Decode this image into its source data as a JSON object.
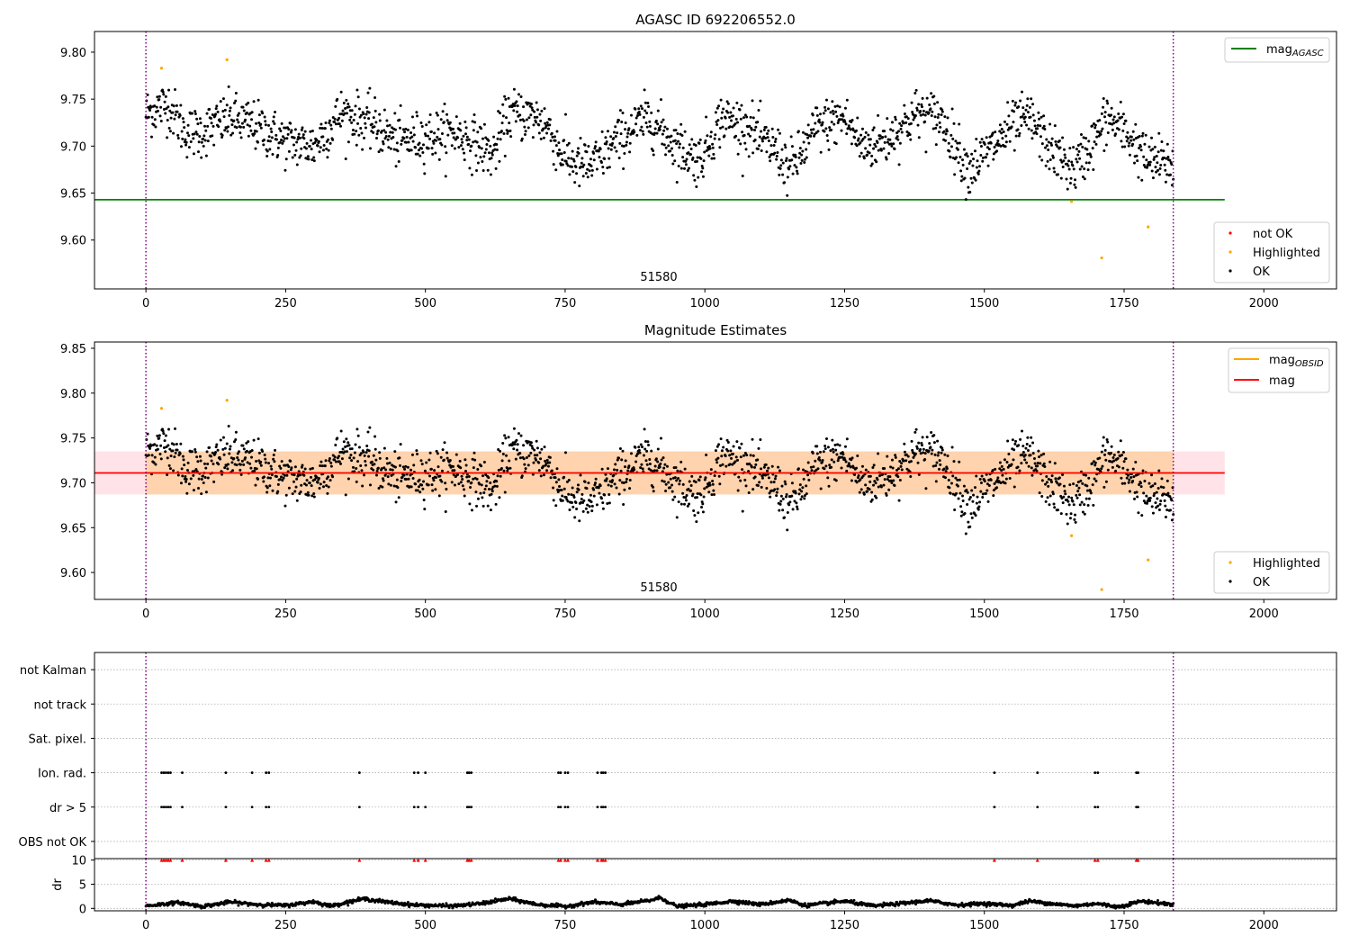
{
  "chart_data": [
    {
      "type": "scatter",
      "title": "AGASC ID 692206552.0",
      "xlabel": "",
      "ylabel": "",
      "xlim": [
        -92,
        2130
      ],
      "ylim": [
        9.548,
        9.822
      ],
      "xticks": [
        0,
        250,
        500,
        750,
        1000,
        1250,
        1500,
        1750,
        2000
      ],
      "yticks": [
        9.6,
        9.65,
        9.7,
        9.75,
        9.8
      ],
      "ytick_labels": [
        "9.60",
        "9.65",
        "9.70",
        "9.75",
        "9.80"
      ],
      "grid": false,
      "observation_boundaries": [
        0,
        1838
      ],
      "observation_labels": [
        {
          "x": 919,
          "text": "51580"
        }
      ],
      "hlines": [
        {
          "name": "mag_AGASC",
          "value": 9.643,
          "xmin": -92,
          "xmax": 1930,
          "color": "#008000"
        }
      ],
      "series": [
        {
          "name": "not OK",
          "color": "#ff0000",
          "x": [],
          "y": []
        },
        {
          "name": "Highlighted",
          "color": "#ffa500",
          "x": [
            28,
            145,
            1656,
            1710,
            1793
          ],
          "y": [
            9.783,
            9.792,
            9.641,
            9.581,
            9.614
          ]
        },
        {
          "name": "OK",
          "color": "#000000",
          "x": [
            0,
            1838
          ],
          "y": [
            9.72,
            9.68
          ],
          "n_points": 1800,
          "profile": [
            [
              0,
              9.735
            ],
            [
              40,
              9.745
            ],
            [
              70,
              9.715
            ],
            [
              100,
              9.715
            ],
            [
              150,
              9.73
            ],
            [
              200,
              9.72
            ],
            [
              250,
              9.705
            ],
            [
              300,
              9.7
            ],
            [
              350,
              9.735
            ],
            [
              400,
              9.725
            ],
            [
              450,
              9.705
            ],
            [
              500,
              9.71
            ],
            [
              550,
              9.715
            ],
            [
              600,
              9.7
            ],
            [
              620,
              9.69
            ],
            [
              650,
              9.735
            ],
            [
              700,
              9.73
            ],
            [
              720,
              9.72
            ],
            [
              740,
              9.695
            ],
            [
              770,
              9.68
            ],
            [
              800,
              9.68
            ],
            [
              850,
              9.71
            ],
            [
              900,
              9.73
            ],
            [
              950,
              9.7
            ],
            [
              990,
              9.685
            ],
            [
              1030,
              9.73
            ],
            [
              1080,
              9.72
            ],
            [
              1100,
              9.705
            ],
            [
              1130,
              9.695
            ],
            [
              1150,
              9.675
            ],
            [
              1170,
              9.69
            ],
            [
              1200,
              9.72
            ],
            [
              1250,
              9.73
            ],
            [
              1280,
              9.7
            ],
            [
              1320,
              9.705
            ],
            [
              1380,
              9.735
            ],
            [
              1420,
              9.73
            ],
            [
              1450,
              9.7
            ],
            [
              1470,
              9.675
            ],
            [
              1500,
              9.69
            ],
            [
              1550,
              9.72
            ],
            [
              1580,
              9.73
            ],
            [
              1620,
              9.695
            ],
            [
              1660,
              9.675
            ],
            [
              1690,
              9.7
            ],
            [
              1720,
              9.73
            ],
            [
              1760,
              9.71
            ],
            [
              1790,
              9.685
            ],
            [
              1838,
              9.68
            ]
          ]
        }
      ],
      "legends": {
        "top-right": [
          "mag_AGASC"
        ],
        "bottom-right": [
          "not OK",
          "Highlighted",
          "OK"
        ]
      }
    },
    {
      "type": "scatter",
      "title": "Magnitude Estimates",
      "xlabel": "",
      "ylabel": "",
      "xlim": [
        -92,
        2130
      ],
      "ylim": [
        9.57,
        9.857
      ],
      "xticks": [
        0,
        250,
        500,
        750,
        1000,
        1250,
        1500,
        1750,
        2000
      ],
      "yticks": [
        9.6,
        9.65,
        9.7,
        9.75,
        9.8,
        9.85
      ],
      "ytick_labels": [
        "9.60",
        "9.65",
        "9.70",
        "9.75",
        "9.80",
        "9.85"
      ],
      "grid": false,
      "observation_boundaries": [
        0,
        1838
      ],
      "observation_labels": [
        {
          "x": 919,
          "text": "51580"
        }
      ],
      "hlines": [
        {
          "name": "mag_OBSID",
          "value": 9.711,
          "xmin": 0,
          "xmax": 1838,
          "color": "#ffa500"
        },
        {
          "name": "mag",
          "value": 9.711,
          "xmin": -92,
          "xmax": 1930,
          "color": "#ff0000"
        }
      ],
      "bands": [
        {
          "name": "mag range",
          "ymin": 9.687,
          "ymax": 9.735,
          "xmin": -92,
          "xmax": 1930,
          "color": "#ffc0cb"
        },
        {
          "name": "mag_OBSID range",
          "ymin": 9.687,
          "ymax": 9.735,
          "xmin": 0,
          "xmax": 1838,
          "color": "#ffa500"
        }
      ],
      "series": [
        {
          "name": "Highlighted",
          "color": "#ffa500",
          "x": [
            28,
            145,
            1656,
            1710,
            1793
          ],
          "y": [
            9.783,
            9.792,
            9.641,
            9.581,
            9.614
          ]
        },
        {
          "name": "OK",
          "color": "#000000",
          "x": [
            0,
            1838
          ],
          "y": [
            9.72,
            9.68
          ],
          "n_points": 1800,
          "same_as": "panel 1 OK"
        }
      ],
      "legends": {
        "top-right": [
          "mag_OBSID",
          "mag"
        ],
        "bottom-right": [
          "Highlighted",
          "OK"
        ]
      }
    },
    {
      "type": "scatter",
      "title": "",
      "xlabel": "",
      "ylabel": "",
      "xlim": [
        -92,
        2130
      ],
      "ylim": [
        -0.5,
        5.5
      ],
      "categories": [
        "OBS not OK",
        "dr > 5",
        "Ion. rad.",
        "Sat. pixel.",
        "not track",
        "not Kalman"
      ],
      "grid": "horizontal dotted",
      "observation_boundaries": [
        0,
        1838
      ],
      "series": [
        {
          "name": "dr > 5",
          "color": "#000000",
          "x": [
            28,
            32,
            36,
            40,
            44,
            65,
            143,
            190,
            215,
            220,
            382,
            480,
            487,
            500,
            575,
            578,
            582,
            738,
            742,
            750,
            755,
            808,
            815,
            818,
            822,
            1518,
            1595,
            1698,
            1703,
            1772,
            1775
          ],
          "y": 1
        },
        {
          "name": "Ion. rad.",
          "color": "#000000",
          "x": [
            28,
            32,
            36,
            40,
            44,
            65,
            143,
            190,
            215,
            220,
            382,
            480,
            487,
            500,
            575,
            578,
            582,
            738,
            742,
            750,
            755,
            808,
            815,
            818,
            822,
            1518,
            1595,
            1698,
            1703,
            1772,
            1775
          ],
          "y": 2
        }
      ]
    },
    {
      "type": "scatter",
      "title": "",
      "xlabel": "",
      "ylabel": "dr",
      "xlim": [
        -92,
        2130
      ],
      "ylim": [
        -0.5,
        10.3
      ],
      "yticks": [
        0,
        5,
        10
      ],
      "ytick_labels": [
        "0",
        "5",
        "10"
      ],
      "xticks": [
        0,
        250,
        500,
        750,
        1000,
        1250,
        1500,
        1750,
        2000
      ],
      "grid": "horizontal dotted",
      "observation_boundaries": [
        0,
        1838
      ],
      "series": [
        {
          "name": "dr",
          "color": "#000000",
          "x": [
            0,
            1838
          ],
          "y": [
            0.5,
            1.0
          ],
          "n_points": 1800,
          "profile": [
            [
              0,
              0.5
            ],
            [
              40,
              1
            ],
            [
              60,
              1.2
            ],
            [
              100,
              0.4
            ],
            [
              150,
              1.3
            ],
            [
              200,
              0.8
            ],
            [
              250,
              0.6
            ],
            [
              300,
              1.4
            ],
            [
              330,
              0.5
            ],
            [
              390,
              2.0
            ],
            [
              430,
              1.3
            ],
            [
              480,
              0.7
            ],
            [
              550,
              0.5
            ],
            [
              600,
              1.0
            ],
            [
              650,
              2.0
            ],
            [
              700,
              0.8
            ],
            [
              750,
              0.4
            ],
            [
              800,
              1.3
            ],
            [
              850,
              0.8
            ],
            [
              900,
              1.6
            ],
            [
              920,
              2.2
            ],
            [
              950,
              0.4
            ],
            [
              1000,
              0.8
            ],
            [
              1050,
              1.5
            ],
            [
              1100,
              0.8
            ],
            [
              1150,
              1.7
            ],
            [
              1180,
              0.6
            ],
            [
              1250,
              1.5
            ],
            [
              1300,
              0.5
            ],
            [
              1350,
              1.0
            ],
            [
              1400,
              1.6
            ],
            [
              1450,
              0.7
            ],
            [
              1500,
              1.0
            ],
            [
              1550,
              0.6
            ],
            [
              1580,
              1.5
            ],
            [
              1620,
              1.0
            ],
            [
              1660,
              0.5
            ],
            [
              1700,
              1.0
            ],
            [
              1740,
              0.3
            ],
            [
              1780,
              1.5
            ],
            [
              1838,
              0.8
            ]
          ]
        },
        {
          "name": "dr > 5 (clipped)",
          "color": "#ff0000",
          "x": [
            28,
            32,
            36,
            40,
            44,
            65,
            143,
            190,
            215,
            220,
            382,
            480,
            487,
            500,
            575,
            578,
            582,
            738,
            742,
            750,
            755,
            808,
            815,
            818,
            822,
            1518,
            1595,
            1698,
            1703,
            1772,
            1775
          ],
          "y": 10
        }
      ]
    }
  ]
}
